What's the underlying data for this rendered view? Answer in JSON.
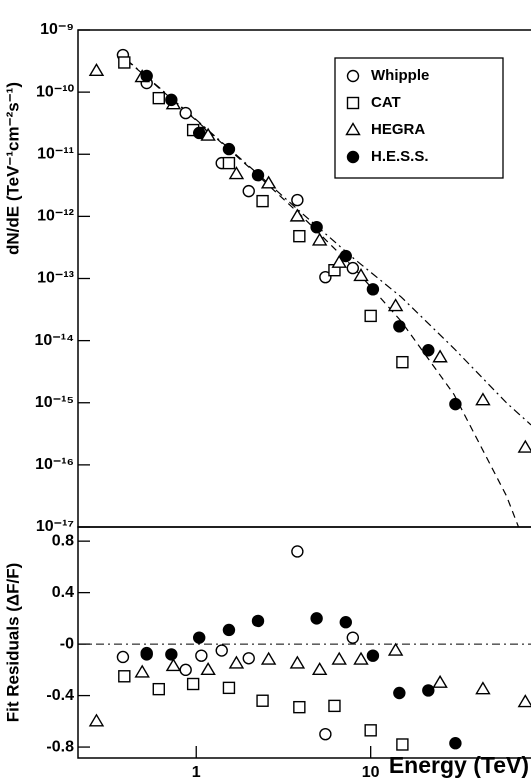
{
  "chart_data": [
    {
      "type": "scatter",
      "y_label": "dN/dE (TeV⁻¹cm⁻²s⁻¹)",
      "xlog": true,
      "ylog": true,
      "xlim": [
        0.21,
        83
      ],
      "ylim": [
        1e-17,
        1e-09
      ],
      "yticks": [
        {
          "value": 1e-09,
          "label": "10⁻⁹"
        },
        {
          "value": 1e-10,
          "label": "10⁻¹⁰"
        },
        {
          "value": 1e-11,
          "label": "10⁻¹¹"
        },
        {
          "value": 1e-12,
          "label": "10⁻¹²"
        },
        {
          "value": 1e-13,
          "label": "10⁻¹³"
        },
        {
          "value": 1e-14,
          "label": "10⁻¹⁴"
        },
        {
          "value": 1e-15,
          "label": "10⁻¹⁵"
        },
        {
          "value": 1e-16,
          "label": "10⁻¹⁶"
        },
        {
          "value": 1e-17,
          "label": "10⁻¹⁷"
        }
      ],
      "legend": "upper right",
      "series": [
        {
          "name": "Whipple",
          "marker": "circle-open",
          "color": "#000000",
          "x": [
            0.38,
            0.52,
            0.87,
            1.07,
            1.4,
            2.0,
            3.8,
            5.5,
            7.9
          ],
          "values": [
            3.95e-10,
            1.4e-10,
            4.6e-11,
            2.2e-11,
            7.2e-12,
            2.55e-12,
            1.83e-12,
            1.05e-13,
            1.47e-13
          ]
        },
        {
          "name": "CAT",
          "marker": "square-open",
          "color": "#000000",
          "x": [
            0.387,
            0.61,
            0.96,
            1.54,
            2.4,
            3.9,
            6.2,
            10,
            15.2
          ],
          "values": [
            3e-10,
            8e-11,
            2.45e-11,
            7.2e-12,
            1.76e-12,
            4.8e-13,
            1.36e-13,
            2.5e-14,
            4.5e-15
          ]
        },
        {
          "name": "HEGRA",
          "marker": "triangle-open",
          "color": "#000000",
          "x": [
            0.268,
            0.49,
            0.74,
            1.17,
            1.7,
            2.6,
            3.8,
            5.1,
            6.6,
            8.8,
            13.9,
            25,
            44,
            77
          ],
          "values": [
            2.2e-10,
            1.75e-10,
            6.4e-11,
            2e-11,
            4.8e-12,
            3.4e-12,
            1e-12,
            4.1e-13,
            1.8e-13,
            1.1e-13,
            3.6e-14,
            5.4e-15,
            1.1e-15,
            1.9e-16
          ]
        },
        {
          "name": "H.E.S.S.",
          "marker": "circle-filled",
          "color": "#000000",
          "x": [
            0.52,
            0.72,
            1.04,
            1.54,
            2.26,
            4.9,
            7.2,
            10.3,
            14.6,
            21.4,
            30.6
          ],
          "values": [
            1.82e-10,
            7.5e-11,
            2.2e-11,
            1.21e-11,
            4.6e-12,
            6.7e-13,
            2.3e-13,
            6.7e-14,
            1.7e-14,
            7e-15,
            9.5e-16
          ]
        }
      ],
      "fits": [
        {
          "style": "dashdot",
          "color": "#000000",
          "x": [
            0.4,
            0.6,
            1,
            2,
            4,
            8,
            15,
            30,
            60,
            83
          ],
          "values": [
            3.3e-10,
            1.25e-10,
            3.6e-11,
            6.5e-12,
            1.15e-12,
            2.1e-13,
            5e-14,
            7.5e-15,
            1e-15,
            4.4e-16
          ]
        },
        {
          "style": "dashed",
          "color": "#000000",
          "x": [
            0.4,
            0.6,
            1,
            2,
            4,
            8,
            15,
            30,
            60,
            80
          ],
          "values": [
            3.27e-10,
            1.22e-10,
            3.5e-11,
            6.24e-12,
            1.03e-12,
            1.49e-13,
            2.03e-14,
            1.37e-15,
            3.18e-17,
            3.96e-18
          ]
        }
      ]
    },
    {
      "type": "scatter",
      "y_label": "Fit Residuals (ΔF/F)",
      "x_label": "Energy (TeV)",
      "xlog": true,
      "ylog": false,
      "xlim": [
        0.21,
        83
      ],
      "ylim": [
        -0.885,
        0.91
      ],
      "xticks": [
        1,
        10
      ],
      "yticks": [
        0.8,
        0.4,
        {
          "value": 0,
          "label": "-0"
        },
        -0.4,
        -0.8
      ],
      "reference_line": 0,
      "series": [
        {
          "marker": "circle-open",
          "color": "#000000",
          "x": [
            0.38,
            0.52,
            0.87,
            1.07,
            1.4,
            2.0,
            3.8,
            5.5,
            7.9
          ],
          "values": [
            -0.1,
            -0.07,
            -0.2,
            -0.09,
            -0.05,
            -0.11,
            0.72,
            -0.7,
            0.05
          ]
        },
        {
          "marker": "square-open",
          "color": "#000000",
          "x": [
            0.387,
            0.61,
            0.96,
            1.54,
            2.4,
            3.9,
            6.2,
            10,
            15.2
          ],
          "values": [
            -0.25,
            -0.35,
            -0.31,
            -0.34,
            -0.44,
            -0.49,
            -0.48,
            -0.67,
            -0.78
          ]
        },
        {
          "marker": "triangle-open",
          "color": "#000000",
          "x": [
            0.268,
            0.49,
            0.74,
            1.17,
            1.7,
            2.6,
            3.8,
            5.1,
            6.6,
            8.8,
            13.9,
            25,
            44,
            77
          ],
          "values": [
            -0.6,
            -0.22,
            -0.17,
            -0.2,
            -0.15,
            -0.12,
            -0.15,
            -0.2,
            -0.12,
            -0.12,
            -0.05,
            -0.3,
            -0.35,
            -0.45
          ]
        },
        {
          "marker": "circle-filled",
          "color": "#000000",
          "x": [
            0.52,
            0.72,
            1.04,
            1.54,
            2.26,
            4.9,
            7.2,
            10.3,
            14.6,
            21.4,
            30.6
          ],
          "values": [
            -0.08,
            -0.08,
            0.05,
            0.11,
            0.18,
            0.2,
            0.17,
            -0.09,
            -0.38,
            -0.36,
            -0.77
          ]
        }
      ]
    }
  ]
}
